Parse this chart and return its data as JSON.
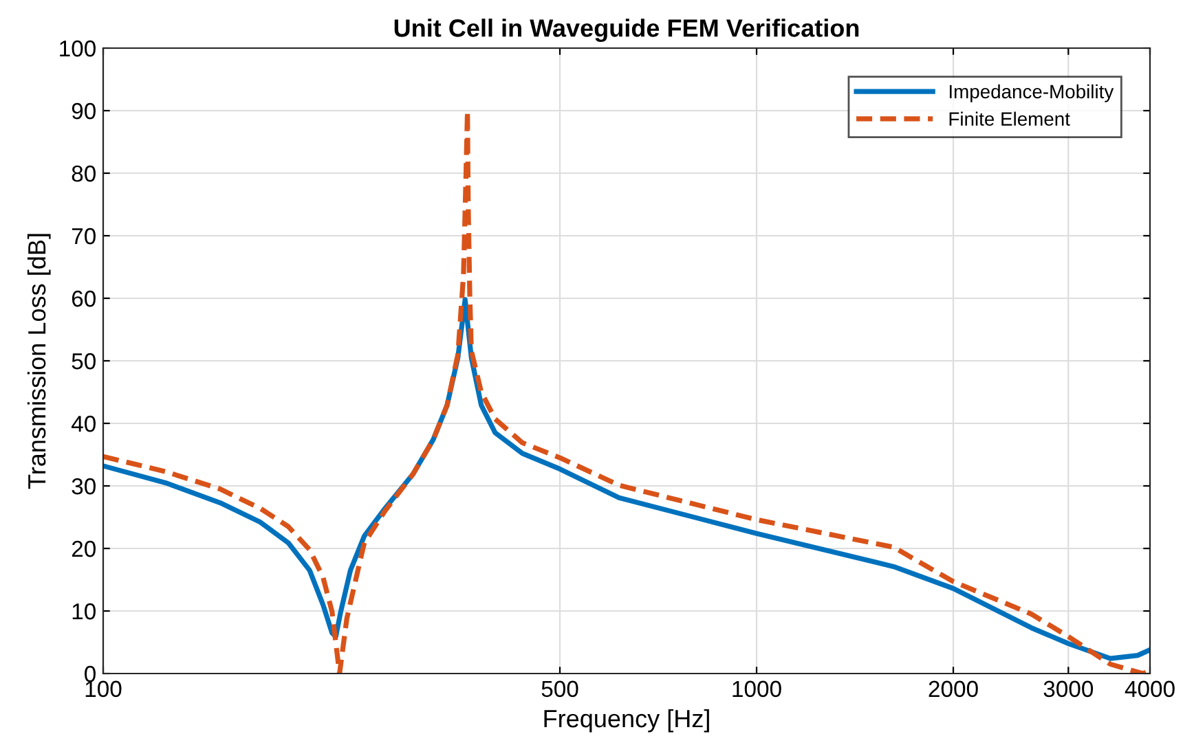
{
  "chart_data": {
    "type": "line",
    "title": "Unit Cell in Waveguide FEM Verification",
    "xlabel": "Frequency [Hz]",
    "ylabel": "Transmission Loss [dB]",
    "log": "x",
    "xlim": [
      100,
      4000
    ],
    "ylim": [
      0,
      100
    ],
    "xticks": [
      100,
      500,
      1000,
      2000,
      3000,
      4000
    ],
    "yticks": [
      0,
      10,
      20,
      30,
      40,
      50,
      60,
      70,
      80,
      90,
      100
    ],
    "grid": true,
    "legend": "top right",
    "series": [
      {
        "name": "Impedance-Mobility",
        "color": "#0072bd",
        "line_style": "solid",
        "x": [
          100,
          124.5,
          151,
          174,
          192,
          207,
          217,
          224,
          227,
          231,
          239,
          251,
          270,
          298,
          320,
          336,
          349,
          358,
          366,
          379,
          398,
          438,
          500,
          616,
          1000,
          1621,
          2000,
          2635,
          3000,
          3478,
          3830,
          4000
        ],
        "values": [
          33.2,
          30.5,
          27.3,
          24.2,
          20.9,
          16.5,
          11,
          6.5,
          5.9,
          9.9,
          16.5,
          22,
          26.4,
          31.9,
          37.4,
          42.9,
          50.5,
          59.8,
          50.5,
          42.9,
          38.5,
          35.2,
          32.7,
          28.1,
          22.4,
          17.1,
          13.6,
          7.3,
          4.8,
          2.4,
          2.9,
          3.8
        ]
      },
      {
        "name": "Finite Element",
        "color": "#d95319",
        "line_style": "dashed",
        "x": [
          100,
          124.5,
          151,
          174,
          192,
          207,
          217,
          224,
          230,
          236,
          244,
          251,
          270,
          298,
          320,
          336,
          349,
          356,
          359,
          361,
          362,
          364,
          366,
          379,
          398,
          438,
          500,
          616,
          1000,
          1621,
          2000,
          2635,
          3000,
          3478,
          3900,
          4000
        ],
        "values": [
          34.7,
          32.3,
          29.5,
          26.4,
          23.5,
          19.8,
          15.4,
          9.9,
          0,
          8.8,
          15.4,
          20.9,
          26,
          31.9,
          37.4,
          42.9,
          51,
          63.7,
          79,
          90,
          74.7,
          60.4,
          51.6,
          45,
          40.7,
          36.9,
          34.5,
          30.1,
          24.6,
          20.2,
          14.7,
          9.5,
          5.9,
          1.5,
          0,
          0.4
        ]
      }
    ]
  }
}
